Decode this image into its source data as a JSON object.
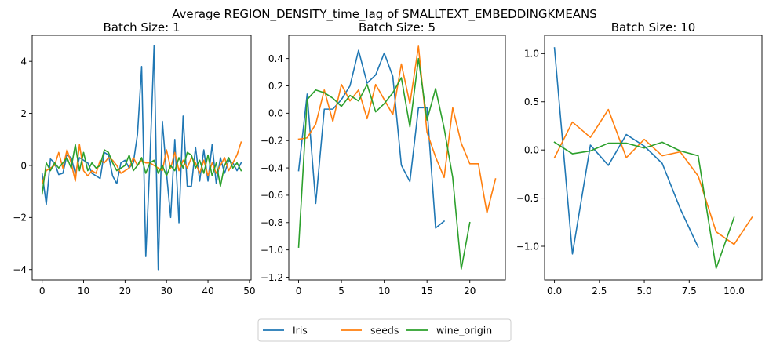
{
  "figure": {
    "suptitle": "Average REGION_DENSITY_time_lag of SMALLTEXT_EMBEDDINGKMEANS"
  },
  "legend": {
    "placement": "bottom-center",
    "entries": [
      {
        "name": "Iris",
        "color": "#1f77b4"
      },
      {
        "name": "seeds",
        "color": "#ff7f0e"
      },
      {
        "name": "wine_origin",
        "color": "#2ca02c"
      }
    ]
  },
  "chart_data": [
    {
      "type": "line",
      "title": "Batch Size: 1",
      "xlabel": "",
      "ylabel": "",
      "xlim": [
        -2.4,
        50.4
      ],
      "ylim": [
        -4.4,
        5.0
      ],
      "xticks": [
        0,
        10,
        20,
        30,
        40,
        50
      ],
      "xtick_labels": [
        "0",
        "10",
        "20",
        "30",
        "40",
        "50"
      ],
      "yticks": [
        -4,
        -2,
        0,
        2,
        4
      ],
      "ytick_labels": [
        "−4",
        "−2",
        "0",
        "2",
        "4"
      ],
      "grid": false,
      "series": [
        {
          "name": "Iris",
          "color": "#1f77b4",
          "x": [
            0,
            1,
            2,
            3,
            4,
            5,
            6,
            7,
            8,
            9,
            10,
            11,
            12,
            13,
            14,
            15,
            16,
            17,
            18,
            19,
            20,
            21,
            22,
            23,
            24,
            25,
            26,
            27,
            28,
            29,
            30,
            31,
            32,
            33,
            34,
            35,
            36,
            37,
            38,
            39,
            40,
            41,
            42,
            43,
            44,
            45,
            46,
            47,
            48
          ],
          "y": [
            -0.3,
            -1.5,
            0.25,
            0.1,
            -0.35,
            -0.3,
            0.4,
            0.3,
            -0.3,
            0.3,
            0.2,
            0.1,
            -0.3,
            -0.4,
            -0.5,
            0.5,
            0.4,
            -0.4,
            -0.7,
            0.1,
            0.2,
            -0.1,
            0.1,
            1.2,
            3.8,
            -3.5,
            0.2,
            4.6,
            -4.0,
            1.7,
            -0.3,
            -2.0,
            1.0,
            -2.2,
            1.9,
            -0.8,
            -0.8,
            0.7,
            -0.6,
            0.6,
            -0.6,
            0.8,
            -0.7,
            0.3,
            -0.3,
            0.2,
            0.1,
            -0.2,
            0.1
          ]
        },
        {
          "name": "seeds",
          "color": "#ff7f0e",
          "x": [
            0,
            1,
            2,
            3,
            4,
            5,
            6,
            7,
            8,
            9,
            10,
            11,
            12,
            13,
            14,
            15,
            16,
            17,
            18,
            19,
            20,
            21,
            22,
            23,
            24,
            25,
            26,
            27,
            28,
            29,
            30,
            31,
            32,
            33,
            34,
            35,
            36,
            37,
            38,
            39,
            40,
            41,
            42,
            43,
            44,
            45,
            46,
            47,
            48
          ],
          "y": [
            -0.7,
            -0.2,
            -0.1,
            0.0,
            0.5,
            -0.1,
            0.6,
            0.1,
            -0.6,
            0.8,
            -0.2,
            -0.4,
            -0.2,
            -0.3,
            0.2,
            0.1,
            0.3,
            0.2,
            0.0,
            -0.3,
            -0.2,
            -0.1,
            0.3,
            0.0,
            0.2,
            0.1,
            0.1,
            0.0,
            -0.1,
            -0.2,
            0.6,
            -0.1,
            0.5,
            -0.2,
            0.2,
            -0.1,
            0.3,
            0.1,
            -0.3,
            0.2,
            -0.4,
            0.1,
            -0.3,
            0.0,
            0.3,
            -0.2,
            0.1,
            0.4,
            0.9
          ]
        },
        {
          "name": "wine_origin",
          "color": "#2ca02c",
          "x": [
            0,
            1,
            2,
            3,
            4,
            5,
            6,
            7,
            8,
            9,
            10,
            11,
            12,
            13,
            14,
            15,
            16,
            17,
            18,
            19,
            20,
            21,
            22,
            23,
            24,
            25,
            26,
            27,
            28,
            29,
            30,
            31,
            32,
            33,
            34,
            35,
            36,
            37,
            38,
            39,
            40,
            41,
            42,
            43,
            44,
            45,
            46,
            47,
            48
          ],
          "y": [
            -1.1,
            0.1,
            -0.2,
            0.1,
            -0.1,
            0.1,
            0.3,
            -0.1,
            0.8,
            -0.2,
            0.5,
            -0.2,
            0.1,
            -0.1,
            0.0,
            0.6,
            0.5,
            0.1,
            -0.2,
            -0.1,
            0.0,
            0.4,
            -0.2,
            0.0,
            0.3,
            -0.3,
            0.1,
            0.2,
            -0.3,
            0.0,
            -0.4,
            0.0,
            -0.2,
            0.3,
            -0.1,
            0.5,
            0.4,
            -0.1,
            0.2,
            -0.3,
            0.4,
            -0.4,
            0.1,
            -0.8,
            0.0,
            0.3,
            -0.1,
            0.1,
            -0.2
          ]
        }
      ]
    },
    {
      "type": "line",
      "title": "Batch Size: 5",
      "xlabel": "",
      "ylabel": "",
      "xlim": [
        -1.15,
        24.15
      ],
      "ylim": [
        -1.22,
        0.57
      ],
      "xticks": [
        0,
        5,
        10,
        15,
        20
      ],
      "xtick_labels": [
        "0",
        "5",
        "10",
        "15",
        "20"
      ],
      "yticks": [
        -1.2,
        -1.0,
        -0.8,
        -0.6,
        -0.4,
        -0.2,
        0.0,
        0.2,
        0.4
      ],
      "ytick_labels": [
        "−1.2",
        "−1.0",
        "−0.8",
        "−0.6",
        "−0.4",
        "−0.2",
        "0.0",
        "0.2",
        "0.4"
      ],
      "grid": false,
      "series": [
        {
          "name": "Iris",
          "color": "#1f77b4",
          "x": [
            0,
            1,
            2,
            3,
            4,
            5,
            6,
            7,
            8,
            9,
            10,
            11,
            12,
            13,
            14,
            15,
            16,
            17
          ],
          "y": [
            -0.42,
            0.14,
            -0.66,
            0.03,
            0.03,
            0.1,
            0.2,
            0.46,
            0.22,
            0.28,
            0.44,
            0.27,
            -0.38,
            -0.5,
            0.04,
            0.04,
            -0.84,
            -0.79
          ]
        },
        {
          "name": "seeds",
          "color": "#ff7f0e",
          "x": [
            0,
            1,
            2,
            3,
            4,
            5,
            6,
            7,
            8,
            9,
            10,
            11,
            12,
            13,
            14,
            15,
            16,
            17,
            18,
            19,
            20,
            21,
            22,
            23
          ],
          "y": [
            -0.19,
            -0.18,
            -0.08,
            0.17,
            -0.06,
            0.21,
            0.09,
            0.17,
            -0.04,
            0.21,
            0.1,
            -0.01,
            0.36,
            0.07,
            0.49,
            -0.14,
            -0.32,
            -0.47,
            0.04,
            -0.22,
            -0.37,
            -0.37,
            -0.73,
            -0.48
          ]
        },
        {
          "name": "wine_origin",
          "color": "#2ca02c",
          "x": [
            0,
            1,
            2,
            3,
            4,
            5,
            6,
            7,
            8,
            9,
            10,
            11,
            12,
            13,
            14,
            15,
            16,
            17,
            18,
            19,
            20
          ],
          "y": [
            -0.98,
            0.1,
            0.17,
            0.15,
            0.11,
            0.05,
            0.13,
            0.09,
            0.21,
            0.01,
            0.07,
            0.15,
            0.26,
            -0.1,
            0.4,
            -0.05,
            0.18,
            -0.11,
            -0.47,
            -1.14,
            -0.8
          ]
        }
      ]
    },
    {
      "type": "line",
      "title": "Batch Size: 10",
      "xlabel": "",
      "ylabel": "",
      "xlim": [
        -0.55,
        11.55
      ],
      "ylim": [
        -1.35,
        1.19
      ],
      "xticks": [
        0,
        2.5,
        5.0,
        7.5,
        10.0
      ],
      "xtick_labels": [
        "0.0",
        "2.5",
        "5.0",
        "7.5",
        "10.0"
      ],
      "yticks": [
        -1.0,
        -0.5,
        0.0,
        0.5,
        1.0
      ],
      "ytick_labels": [
        "−1.0",
        "−0.5",
        "0.0",
        "0.5",
        "1.0"
      ],
      "grid": false,
      "series": [
        {
          "name": "Iris",
          "color": "#1f77b4",
          "x": [
            0,
            1,
            2,
            3,
            4,
            5,
            6,
            7,
            8
          ],
          "y": [
            1.06,
            -1.08,
            0.05,
            -0.16,
            0.16,
            0.04,
            -0.14,
            -0.61,
            -1.01
          ]
        },
        {
          "name": "seeds",
          "color": "#ff7f0e",
          "x": [
            0,
            1,
            2,
            3,
            4,
            5,
            6,
            7,
            8,
            9,
            10,
            11
          ],
          "y": [
            -0.08,
            0.29,
            0.13,
            0.42,
            -0.08,
            0.11,
            -0.06,
            -0.02,
            -0.27,
            -0.85,
            -0.98,
            -0.7
          ]
        },
        {
          "name": "wine_origin",
          "color": "#2ca02c",
          "x": [
            0,
            1,
            2,
            3,
            4,
            5,
            6,
            7,
            8,
            9,
            10
          ],
          "y": [
            0.08,
            -0.04,
            -0.01,
            0.07,
            0.07,
            0.02,
            0.08,
            -0.01,
            -0.06,
            -1.23,
            -0.7
          ]
        }
      ]
    }
  ]
}
